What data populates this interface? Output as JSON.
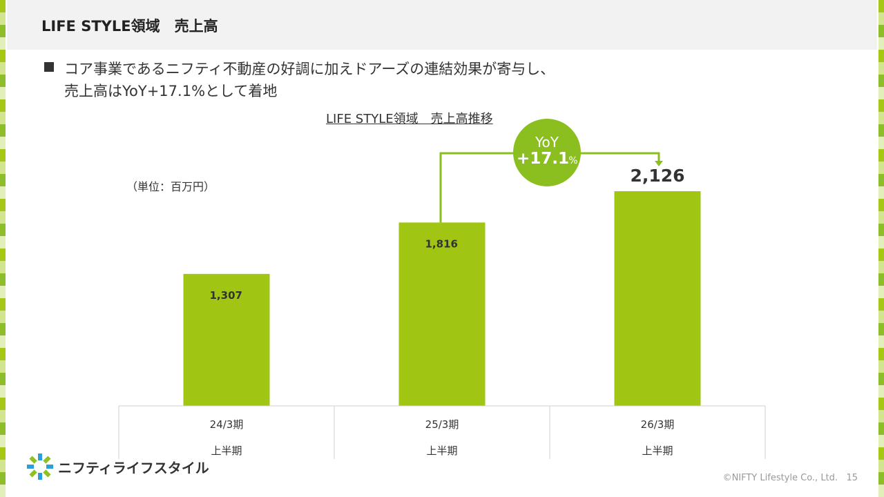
{
  "header": {
    "title": "LIFE STYLE領域　売上高"
  },
  "bullet": {
    "line1": "コア事業であるニフティ不動産の好調に加えドアーズの連結効果が寄与し、",
    "line2": "売上高はYoY+17.1%として着地"
  },
  "colors": {
    "bar": "#a0c613",
    "accent": "#8bbf1f",
    "text": "#333333"
  },
  "chart_data": {
    "type": "bar",
    "title": "LIFE STYLE領域　売上高推移",
    "unit": "（単位：百万円）",
    "categories": [
      {
        "period": "24/3期",
        "sub": "上半期"
      },
      {
        "period": "25/3期",
        "sub": "上半期"
      },
      {
        "period": "26/3期",
        "sub": "上半期"
      }
    ],
    "values": [
      1307,
      1816,
      2126
    ],
    "value_labels": [
      "1,307",
      "1,816",
      "2,126"
    ],
    "ylim": [
      0,
      2126
    ],
    "grid": false,
    "annotation": {
      "label": "YoY",
      "value": "+17.1",
      "suffix": "%",
      "from_index": 1,
      "to_index": 2
    }
  },
  "footer": {
    "logo_text": "ニフティライフスタイル",
    "copyright": "©NIFTY Lifestyle Co., Ltd.",
    "page_number": "15"
  }
}
